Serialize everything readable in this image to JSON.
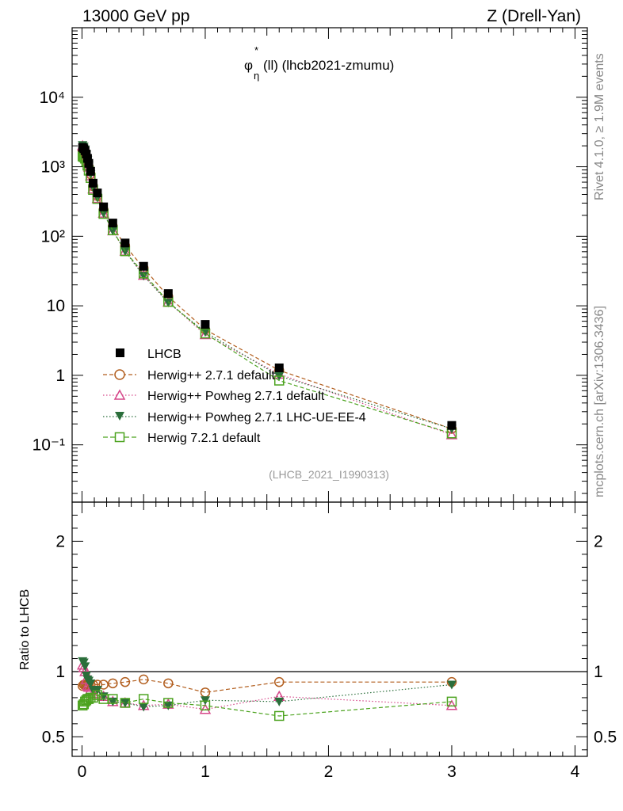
{
  "header": {
    "left": "13000 GeV pp",
    "right": "Z (Drell-Yan)"
  },
  "side_text": {
    "top": "Rivet 4.1.0, ≥ 1.9M events",
    "bottom": "mcplots.cern.ch [arXiv:1306.3436]"
  },
  "colors": {
    "data": "#000000",
    "herwigpp": "#b25e1e",
    "powheg": "#d6488a",
    "powheg_lhc": "#2b6e3b",
    "herwig7": "#4ca31f"
  },
  "chart_data": {
    "type": "line",
    "title": "φ*η(ll) (lhcb2021-zmumu)",
    "title_parts": {
      "symbol": "φ",
      "sup": "*",
      "sub": "η",
      "rest": "(ll) (lhcb2021-zmumu)"
    },
    "watermark": "(LHCB_2021_I1990313)",
    "x": [
      0.005,
      0.015,
      0.025,
      0.035,
      0.045,
      0.055,
      0.07,
      0.09,
      0.125,
      0.175,
      0.25,
      0.35,
      0.5,
      0.7,
      1.0,
      1.6,
      3.0
    ],
    "xlim": [
      -0.08,
      4.1
    ],
    "xticks": [
      0,
      1,
      2,
      3,
      4
    ],
    "main": {
      "yscale": "log",
      "ylim": [
        0.015,
        100000
      ],
      "ytick_labels": [
        "10⁻¹",
        "1",
        "10",
        "10²",
        "10³",
        "10⁴"
      ],
      "ytick_values": [
        0.1,
        1,
        10,
        100,
        1000,
        10000
      ]
    },
    "ratio": {
      "ylabel": "Ratio to LHCB",
      "ylim": [
        0.35,
        2.3
      ],
      "yticks": [
        0.5,
        1,
        2
      ],
      "ytick_labels": [
        "0.5",
        "1",
        "2"
      ]
    },
    "series": [
      {
        "name": "LHCB",
        "key": "data",
        "style": "solid",
        "marker": "filled-square",
        "values": [
          1900,
          1820,
          1700,
          1520,
          1320,
          1120,
          860,
          580,
          420,
          265,
          155,
          80,
          37,
          15,
          5.4,
          1.28,
          0.19
        ],
        "ratio": [
          1,
          1,
          1,
          1,
          1,
          1,
          1,
          1,
          1,
          1,
          1,
          1,
          1,
          1,
          1,
          1,
          1
        ]
      },
      {
        "name": "Herwig++ 2.7.1 default",
        "key": "herwigpp",
        "style": "dashed",
        "marker": "open-circle",
        "values": [
          1700,
          1640,
          1530,
          1370,
          1190,
          1000,
          780,
          525,
          380,
          240,
          140,
          73,
          35,
          13.6,
          4.55,
          1.18,
          0.17
        ],
        "ratio": [
          0.89,
          0.9,
          0.9,
          0.9,
          0.9,
          0.9,
          0.9,
          0.9,
          0.9,
          0.9,
          0.91,
          0.92,
          0.94,
          0.91,
          0.84,
          0.92,
          0.92
        ]
      },
      {
        "name": "Herwig++ Powheg 2.7.1 default",
        "key": "powheg",
        "style": "dotted",
        "marker": "open-triangle",
        "values": [
          2000,
          1870,
          1700,
          1420,
          1180,
          990,
          740,
          480,
          350,
          215,
          120,
          61,
          27.5,
          11.3,
          3.85,
          1.04,
          0.14
        ],
        "ratio": [
          1.05,
          1.03,
          1.0,
          0.94,
          0.89,
          0.88,
          0.86,
          0.83,
          0.83,
          0.81,
          0.77,
          0.76,
          0.74,
          0.75,
          0.71,
          0.81,
          0.74
        ]
      },
      {
        "name": "Herwig++ Powheg 2.7.1 LHC-UE-EE-4",
        "key": "powheg_lhc",
        "style": "dotted",
        "marker": "filled-triangle-down",
        "values": [
          2050,
          1950,
          1770,
          1480,
          1240,
          1040,
          780,
          500,
          360,
          215,
          120,
          61,
          27,
          11.1,
          4.2,
          0.98,
          0.17
        ],
        "ratio": [
          1.08,
          1.07,
          1.04,
          0.97,
          0.94,
          0.93,
          0.91,
          0.86,
          0.86,
          0.81,
          0.77,
          0.76,
          0.73,
          0.74,
          0.78,
          0.77,
          0.9
        ]
      },
      {
        "name": "Herwig 7.2.1 default",
        "key": "herwig7",
        "style": "dashed",
        "marker": "open-square",
        "values": [
          1410,
          1370,
          1310,
          1190,
          1040,
          880,
          690,
          465,
          345,
          210,
          122,
          61,
          29.2,
          11.4,
          4.0,
          0.84,
          0.146
        ],
        "ratio": [
          0.74,
          0.75,
          0.77,
          0.78,
          0.79,
          0.79,
          0.8,
          0.8,
          0.82,
          0.79,
          0.79,
          0.76,
          0.79,
          0.76,
          0.74,
          0.66,
          0.77
        ]
      }
    ]
  }
}
